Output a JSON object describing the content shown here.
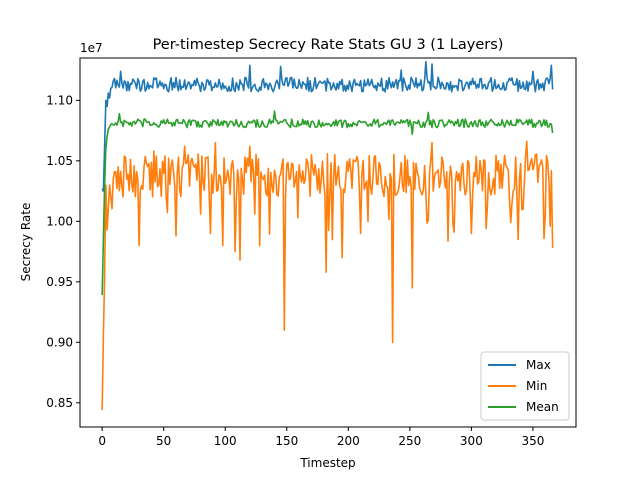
{
  "chart_data": {
    "type": "line",
    "title": "Per-timestep Secrecy Rate Stats GU 3 (1 Layers)",
    "xlabel": "Timestep",
    "ylabel": "Secrecy Rate",
    "offset_label": "1e7",
    "xlim": [
      -18,
      385
    ],
    "ylim": [
      0.83,
      1.135
    ],
    "xticks": [
      0,
      50,
      100,
      150,
      200,
      250,
      300,
      350
    ],
    "xtick_labels": [
      "0",
      "50",
      "100",
      "150",
      "200",
      "250",
      "300",
      "350"
    ],
    "yticks": [
      0.85,
      0.9,
      0.95,
      1.0,
      1.05,
      1.1
    ],
    "ytick_labels": [
      "0.85",
      "0.90",
      "0.95",
      "1.00",
      "1.05",
      "1.10"
    ],
    "legend_position": "lower-right",
    "n_points": 367,
    "series": [
      {
        "name": "Max",
        "color": "#1f77b4",
        "start": [
          1.027,
          1.025,
          1.062,
          1.1,
          1.095,
          1.106,
          1.102,
          1.11
        ],
        "level": 1.113,
        "amplitude": 0.006,
        "spikes": [
          [
            15,
            1.124
          ],
          [
            120,
            1.129
          ],
          [
            145,
            1.128
          ],
          [
            243,
            1.125
          ],
          [
            263,
            1.132
          ],
          [
            268,
            1.13
          ],
          [
            350,
            1.124
          ],
          [
            365,
            1.129
          ],
          [
            366,
            1.109
          ]
        ]
      },
      {
        "name": "Min",
        "color": "#ff7f0e",
        "start": [
          0.844,
          0.905,
          0.955,
          1.03,
          0.993,
          1.01,
          1.03,
          1.02
        ],
        "level": 1.038,
        "amplitude": 0.018,
        "spikes": [
          [
            30,
            0.98
          ],
          [
            42,
            1.058
          ],
          [
            60,
            0.988
          ],
          [
            67,
            1.062
          ],
          [
            88,
            0.99
          ],
          [
            92,
            1.065
          ],
          [
            98,
            0.98
          ],
          [
            108,
            0.975
          ],
          [
            112,
            0.968
          ],
          [
            120,
            1.062
          ],
          [
            128,
            0.98
          ],
          [
            148,
            0.91
          ],
          [
            170,
            1.055
          ],
          [
            182,
            0.958
          ],
          [
            195,
            0.97
          ],
          [
            210,
            0.99
          ],
          [
            236,
            0.9
          ],
          [
            252,
            0.945
          ],
          [
            268,
            1.065
          ],
          [
            300,
            0.99
          ],
          [
            338,
            0.985
          ],
          [
            345,
            1.066
          ],
          [
            366,
            0.978
          ]
        ]
      },
      {
        "name": "Mean",
        "color": "#2ca02c",
        "start": [
          0.939,
          0.985,
          1.03,
          1.06,
          1.07,
          1.076,
          1.078,
          1.08
        ],
        "level": 1.081,
        "amplitude": 0.0035,
        "spikes": [
          [
            14,
            1.089
          ],
          [
            140,
            1.091
          ],
          [
            252,
            1.072
          ],
          [
            265,
            1.09
          ],
          [
            366,
            1.073
          ]
        ]
      }
    ]
  }
}
